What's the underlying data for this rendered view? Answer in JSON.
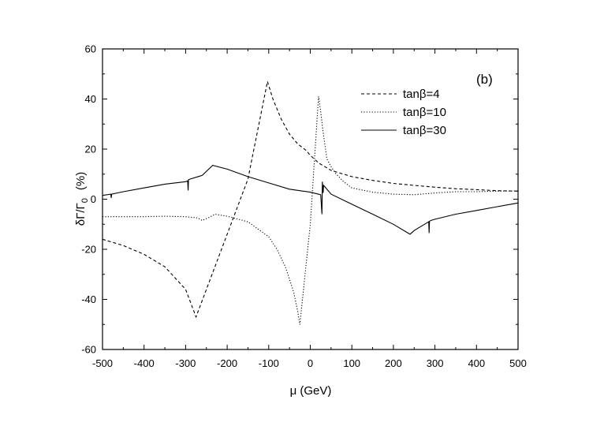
{
  "chart_data": {
    "type": "line",
    "panel_label": "(b)",
    "xlabel": "μ (GeV)",
    "ylabel": "δΓ/Γ₀ (%)",
    "ylabel_main": "δΓ/Γ",
    "ylabel_sub": "0",
    "ylabel_unit": "(%)",
    "xlim": [
      -500,
      500
    ],
    "ylim": [
      -60,
      60
    ],
    "xticks": [
      -500,
      -400,
      -300,
      -200,
      -100,
      0,
      100,
      200,
      300,
      400,
      500
    ],
    "yticks": [
      -60,
      -40,
      -20,
      0,
      20,
      40,
      60
    ],
    "grid": false,
    "legend_position": "top-right",
    "series": [
      {
        "name": "tanβ=4",
        "style": "dashed",
        "x": [
          -500,
          -450,
          -400,
          -350,
          -300,
          -275,
          -250,
          -200,
          -150,
          -103,
          -90,
          -70,
          -50,
          -30,
          -10,
          0,
          20,
          50,
          100,
          150,
          200,
          250,
          300,
          350,
          400,
          450,
          500
        ],
        "y": [
          -16,
          -18.5,
          -22,
          -27,
          -36,
          -47,
          -36,
          -14,
          8,
          47,
          40,
          32,
          26,
          22,
          19.5,
          17.5,
          14.5,
          11.5,
          9,
          7.5,
          6.3,
          5.5,
          4.8,
          4.2,
          3.8,
          3.4,
          3.2
        ]
      },
      {
        "name": "tanβ=10",
        "style": "dotted",
        "x": [
          -500,
          -450,
          -400,
          -350,
          -300,
          -270,
          -260,
          -240,
          -230,
          -200,
          -150,
          -100,
          -80,
          -60,
          -40,
          -30,
          -25,
          0,
          20,
          25,
          30,
          35,
          40,
          50,
          60,
          80,
          100,
          150,
          200,
          250,
          300,
          350,
          400,
          450,
          500
        ],
        "y": [
          -7,
          -7,
          -7,
          -6.8,
          -7,
          -7.5,
          -8.5,
          -7,
          -6,
          -6.8,
          -9,
          -15,
          -20,
          -27,
          -37,
          -45,
          -50,
          -10,
          41,
          35,
          28,
          22,
          16,
          13,
          10.5,
          7,
          4.5,
          2.8,
          2,
          1.8,
          2.5,
          3,
          3,
          3.2,
          3.3
        ]
      },
      {
        "name": "tanβ=30",
        "style": "solid",
        "x": [
          -500,
          -480,
          -479,
          -478,
          -450,
          -400,
          -350,
          -300,
          -295,
          -294,
          -293,
          -290,
          -260,
          -235,
          -200,
          -150,
          -100,
          -50,
          0,
          25,
          28,
          29,
          31,
          32,
          35,
          50,
          100,
          150,
          200,
          240,
          250,
          280,
          285,
          286,
          287,
          290,
          300,
          350,
          400,
          450,
          500
        ],
        "y": [
          1.5,
          2,
          0.5,
          2,
          3,
          4.5,
          6,
          7,
          7.3,
          3.5,
          7.8,
          8,
          9.5,
          13.5,
          12,
          9,
          6.5,
          4,
          2.8,
          1.8,
          -6,
          7,
          2.5,
          5.5,
          5,
          2,
          -2,
          -6,
          -10,
          -14,
          -12.5,
          -9.5,
          -9,
          -13.5,
          -8.8,
          -8.5,
          -8,
          -6,
          -4.5,
          -3,
          -1.5
        ]
      }
    ]
  }
}
